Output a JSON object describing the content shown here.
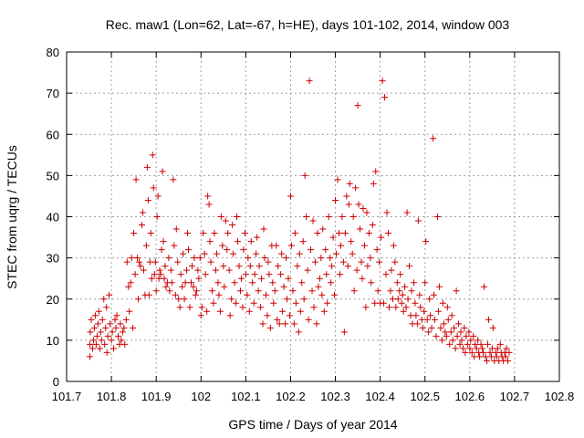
{
  "chart_data": {
    "type": "scatter",
    "title": "Rec. maw1 (Lon=62, Lat=-67, h=HE), days 101-102, 2014, window 003",
    "xlabel": "GPS time / Days of year 2014",
    "ylabel": "STEC from uqrg / TECUs",
    "xlim": [
      101.7,
      102.8
    ],
    "ylim": [
      0,
      80
    ],
    "xticks": [
      "101.7",
      "101.8",
      "101.9",
      "102",
      "102.1",
      "102.2",
      "102.3",
      "102.4",
      "102.5",
      "102.6",
      "102.7",
      "102.8"
    ],
    "yticks": [
      "0",
      "10",
      "20",
      "30",
      "40",
      "50",
      "60",
      "70",
      "80"
    ],
    "grid": true,
    "marker": "+",
    "color": "#cc0000",
    "points": [
      [
        101.752,
        6
      ],
      [
        101.752,
        9
      ],
      [
        101.753,
        12
      ],
      [
        101.755,
        15
      ],
      [
        101.758,
        8
      ],
      [
        101.76,
        10
      ],
      [
        101.762,
        13
      ],
      [
        101.764,
        16
      ],
      [
        101.766,
        9
      ],
      [
        101.768,
        11
      ],
      [
        101.77,
        14
      ],
      [
        101.772,
        17
      ],
      [
        101.774,
        8
      ],
      [
        101.776,
        12
      ],
      [
        101.778,
        10
      ],
      [
        101.78,
        15
      ],
      [
        101.783,
        20
      ],
      [
        101.785,
        9
      ],
      [
        101.787,
        13
      ],
      [
        101.789,
        18
      ],
      [
        101.79,
        7
      ],
      [
        101.792,
        11
      ],
      [
        101.795,
        21
      ],
      [
        101.797,
        14
      ],
      [
        101.8,
        10
      ],
      [
        101.802,
        12
      ],
      [
        101.805,
        8
      ],
      [
        101.808,
        15
      ],
      [
        101.81,
        13
      ],
      [
        101.812,
        16
      ],
      [
        101.815,
        11
      ],
      [
        101.818,
        9
      ],
      [
        101.82,
        14
      ],
      [
        101.822,
        10
      ],
      [
        101.825,
        12
      ],
      [
        101.828,
        13
      ],
      [
        101.83,
        9
      ],
      [
        101.833,
        15
      ],
      [
        101.835,
        29
      ],
      [
        101.838,
        23
      ],
      [
        101.84,
        17
      ],
      [
        101.843,
        24
      ],
      [
        101.845,
        30
      ],
      [
        101.848,
        13
      ],
      [
        101.85,
        36
      ],
      [
        101.853,
        26
      ],
      [
        101.855,
        49
      ],
      [
        101.858,
        30
      ],
      [
        101.86,
        20
      ],
      [
        101.862,
        29
      ],
      [
        101.865,
        28
      ],
      [
        101.868,
        38
      ],
      [
        101.87,
        41
      ],
      [
        101.872,
        27
      ],
      [
        101.875,
        21
      ],
      [
        101.878,
        33
      ],
      [
        101.88,
        52
      ],
      [
        101.882,
        44
      ],
      [
        101.884,
        21
      ],
      [
        101.886,
        29
      ],
      [
        101.888,
        36
      ],
      [
        101.89,
        25
      ],
      [
        101.892,
        55
      ],
      [
        101.894,
        47
      ],
      [
        101.896,
        26
      ],
      [
        101.898,
        29
      ],
      [
        101.9,
        22
      ],
      [
        101.902,
        40
      ],
      [
        101.904,
        45
      ],
      [
        101.906,
        25
      ],
      [
        101.908,
        27
      ],
      [
        101.91,
        26
      ],
      [
        101.912,
        32
      ],
      [
        101.914,
        51
      ],
      [
        101.916,
        34
      ],
      [
        101.918,
        25
      ],
      [
        101.92,
        28
      ],
      [
        101.922,
        23
      ],
      [
        101.925,
        24
      ],
      [
        101.928,
        30
      ],
      [
        101.93,
        22
      ],
      [
        101.933,
        27
      ],
      [
        101.935,
        24
      ],
      [
        101.938,
        49
      ],
      [
        101.94,
        33
      ],
      [
        101.943,
        21
      ],
      [
        101.945,
        37
      ],
      [
        101.948,
        29
      ],
      [
        101.95,
        20
      ],
      [
        101.953,
        18
      ],
      [
        101.955,
        26
      ],
      [
        101.958,
        23
      ],
      [
        101.96,
        31
      ],
      [
        101.963,
        20
      ],
      [
        101.965,
        24
      ],
      [
        101.968,
        27
      ],
      [
        101.97,
        36
      ],
      [
        101.972,
        32
      ],
      [
        101.975,
        18
      ],
      [
        101.978,
        24
      ],
      [
        101.98,
        28
      ],
      [
        101.983,
        23
      ],
      [
        101.985,
        30
      ],
      [
        101.988,
        21
      ],
      [
        101.99,
        22
      ],
      [
        101.993,
        27
      ],
      [
        101.995,
        25
      ],
      [
        101.998,
        30
      ],
      [
        102.0,
        16
      ],
      [
        102.002,
        18
      ],
      [
        102.005,
        36
      ],
      [
        102.008,
        31
      ],
      [
        102.01,
        26
      ],
      [
        102.013,
        17
      ],
      [
        102.015,
        45
      ],
      [
        102.018,
        43
      ],
      [
        102.02,
        34
      ],
      [
        102.022,
        29
      ],
      [
        102.025,
        22
      ],
      [
        102.028,
        19
      ],
      [
        102.03,
        36
      ],
      [
        102.033,
        27
      ],
      [
        102.035,
        31
      ],
      [
        102.038,
        24
      ],
      [
        102.04,
        21
      ],
      [
        102.043,
        17
      ],
      [
        102.045,
        40
      ],
      [
        102.048,
        33
      ],
      [
        102.05,
        28
      ],
      [
        102.052,
        23
      ],
      [
        102.055,
        39
      ],
      [
        102.058,
        32
      ],
      [
        102.06,
        36
      ],
      [
        102.063,
        27
      ],
      [
        102.065,
        16
      ],
      [
        102.068,
        20
      ],
      [
        102.07,
        38
      ],
      [
        102.072,
        31
      ],
      [
        102.075,
        24
      ],
      [
        102.078,
        19
      ],
      [
        102.08,
        40
      ],
      [
        102.082,
        34
      ],
      [
        102.085,
        28
      ],
      [
        102.088,
        22
      ],
      [
        102.09,
        25
      ],
      [
        102.093,
        18
      ],
      [
        102.095,
        32
      ],
      [
        102.098,
        36
      ],
      [
        102.1,
        26
      ],
      [
        102.103,
        21
      ],
      [
        102.105,
        30
      ],
      [
        102.108,
        17
      ],
      [
        102.11,
        28
      ],
      [
        102.112,
        34
      ],
      [
        102.115,
        24
      ],
      [
        102.118,
        19
      ],
      [
        102.12,
        26
      ],
      [
        102.123,
        31
      ],
      [
        102.125,
        35
      ],
      [
        102.128,
        22
      ],
      [
        102.13,
        28
      ],
      [
        102.133,
        18
      ],
      [
        102.135,
        25
      ],
      [
        102.138,
        14
      ],
      [
        102.14,
        37
      ],
      [
        102.142,
        30
      ],
      [
        102.145,
        21
      ],
      [
        102.148,
        16
      ],
      [
        102.15,
        29
      ],
      [
        102.152,
        26
      ],
      [
        102.155,
        13
      ],
      [
        102.158,
        33
      ],
      [
        102.16,
        24
      ],
      [
        102.162,
        19
      ],
      [
        102.165,
        22
      ],
      [
        102.168,
        33
      ],
      [
        102.17,
        15
      ],
      [
        102.172,
        28
      ],
      [
        102.175,
        14
      ],
      [
        102.178,
        26
      ],
      [
        102.18,
        31
      ],
      [
        102.182,
        17
      ],
      [
        102.185,
        23
      ],
      [
        102.188,
        14
      ],
      [
        102.19,
        30
      ],
      [
        102.192,
        20
      ],
      [
        102.195,
        25
      ],
      [
        102.198,
        16
      ],
      [
        102.2,
        45
      ],
      [
        102.202,
        33
      ],
      [
        102.205,
        22
      ],
      [
        102.208,
        14
      ],
      [
        102.21,
        36
      ],
      [
        102.212,
        19
      ],
      [
        102.215,
        28
      ],
      [
        102.218,
        12
      ],
      [
        102.22,
        31
      ],
      [
        102.222,
        17
      ],
      [
        102.225,
        24
      ],
      [
        102.228,
        34
      ],
      [
        102.23,
        20
      ],
      [
        102.232,
        50
      ],
      [
        102.235,
        40
      ],
      [
        102.238,
        27
      ],
      [
        102.24,
        15
      ],
      [
        102.242,
        73
      ],
      [
        102.245,
        32
      ],
      [
        102.248,
        22
      ],
      [
        102.25,
        39
      ],
      [
        102.252,
        18
      ],
      [
        102.255,
        29
      ],
      [
        102.258,
        14
      ],
      [
        102.26,
        36
      ],
      [
        102.262,
        23
      ],
      [
        102.265,
        25
      ],
      [
        102.268,
        30
      ],
      [
        102.27,
        21
      ],
      [
        102.272,
        37
      ],
      [
        102.275,
        17
      ],
      [
        102.278,
        32
      ],
      [
        102.28,
        26
      ],
      [
        102.282,
        19
      ],
      [
        102.285,
        40
      ],
      [
        102.288,
        30
      ],
      [
        102.29,
        24
      ],
      [
        102.292,
        28
      ],
      [
        102.295,
        35
      ],
      [
        102.298,
        21
      ],
      [
        102.3,
        44
      ],
      [
        102.302,
        31
      ],
      [
        102.305,
        49
      ],
      [
        102.308,
        36
      ],
      [
        102.31,
        26
      ],
      [
        102.312,
        33
      ],
      [
        102.315,
        40
      ],
      [
        102.318,
        29
      ],
      [
        102.32,
        12
      ],
      [
        102.322,
        36
      ],
      [
        102.325,
        45
      ],
      [
        102.328,
        28
      ],
      [
        102.33,
        43
      ],
      [
        102.332,
        48
      ],
      [
        102.335,
        34
      ],
      [
        102.338,
        31
      ],
      [
        102.34,
        40
      ],
      [
        102.342,
        22
      ],
      [
        102.345,
        47
      ],
      [
        102.348,
        27
      ],
      [
        102.35,
        67
      ],
      [
        102.352,
        43
      ],
      [
        102.355,
        37
      ],
      [
        102.358,
        29
      ],
      [
        102.36,
        25
      ],
      [
        102.362,
        42
      ],
      [
        102.365,
        33
      ],
      [
        102.368,
        18
      ],
      [
        102.37,
        41
      ],
      [
        102.372,
        28
      ],
      [
        102.375,
        36
      ],
      [
        102.378,
        30
      ],
      [
        102.38,
        24
      ],
      [
        102.383,
        38
      ],
      [
        102.385,
        48
      ],
      [
        102.388,
        19
      ],
      [
        102.39,
        51
      ],
      [
        102.393,
        32
      ],
      [
        102.395,
        22
      ],
      [
        102.398,
        29
      ],
      [
        102.4,
        19
      ],
      [
        102.402,
        35
      ],
      [
        102.405,
        73
      ],
      [
        102.408,
        19
      ],
      [
        102.41,
        69
      ],
      [
        102.413,
        26
      ],
      [
        102.415,
        41
      ],
      [
        102.418,
        36
      ],
      [
        102.42,
        18
      ],
      [
        102.423,
        22
      ],
      [
        102.425,
        27
      ],
      [
        102.428,
        20
      ],
      [
        102.43,
        33
      ],
      [
        102.433,
        29
      ],
      [
        102.435,
        18
      ],
      [
        102.438,
        24
      ],
      [
        102.44,
        20
      ],
      [
        102.443,
        22
      ],
      [
        102.445,
        26
      ],
      [
        102.448,
        19
      ],
      [
        102.45,
        21
      ],
      [
        102.452,
        17
      ],
      [
        102.455,
        23
      ],
      [
        102.458,
        18
      ],
      [
        102.46,
        41
      ],
      [
        102.462,
        20
      ],
      [
        102.465,
        28
      ],
      [
        102.468,
        16
      ],
      [
        102.47,
        22
      ],
      [
        102.472,
        14
      ],
      [
        102.475,
        24
      ],
      [
        102.478,
        19
      ],
      [
        102.48,
        16
      ],
      [
        102.483,
        14
      ],
      [
        102.485,
        39
      ],
      [
        102.488,
        21
      ],
      [
        102.49,
        18
      ],
      [
        102.493,
        15
      ],
      [
        102.495,
        13
      ],
      [
        102.498,
        17
      ],
      [
        102.5,
        24
      ],
      [
        102.502,
        34
      ],
      [
        102.505,
        15
      ],
      [
        102.508,
        12
      ],
      [
        102.51,
        20
      ],
      [
        102.512,
        16
      ],
      [
        102.515,
        13
      ],
      [
        102.518,
        59
      ],
      [
        102.52,
        21
      ],
      [
        102.522,
        15
      ],
      [
        102.525,
        11
      ],
      [
        102.528,
        40
      ],
      [
        102.53,
        17
      ],
      [
        102.532,
        23
      ],
      [
        102.535,
        13
      ],
      [
        102.538,
        10
      ],
      [
        102.54,
        19
      ],
      [
        102.542,
        14
      ],
      [
        102.545,
        12
      ],
      [
        102.548,
        11
      ],
      [
        102.55,
        18
      ],
      [
        102.552,
        15
      ],
      [
        102.555,
        9
      ],
      [
        102.558,
        12
      ],
      [
        102.56,
        16
      ],
      [
        102.562,
        10
      ],
      [
        102.565,
        13
      ],
      [
        102.568,
        8
      ],
      [
        102.57,
        22
      ],
      [
        102.572,
        11
      ],
      [
        102.575,
        14
      ],
      [
        102.578,
        9
      ],
      [
        102.58,
        12
      ],
      [
        102.582,
        10
      ],
      [
        102.585,
        8
      ],
      [
        102.588,
        13
      ],
      [
        102.59,
        7
      ],
      [
        102.592,
        11
      ],
      [
        102.595,
        9
      ],
      [
        102.598,
        12
      ],
      [
        102.6,
        8
      ],
      [
        102.602,
        10
      ],
      [
        102.605,
        7
      ],
      [
        102.608,
        11
      ],
      [
        102.61,
        6
      ],
      [
        102.612,
        9
      ],
      [
        102.615,
        8
      ],
      [
        102.618,
        10
      ],
      [
        102.62,
        7
      ],
      [
        102.622,
        6
      ],
      [
        102.625,
        9
      ],
      [
        102.628,
        8
      ],
      [
        102.63,
        7
      ],
      [
        102.632,
        23
      ],
      [
        102.635,
        6
      ],
      [
        102.638,
        5
      ],
      [
        102.64,
        9
      ],
      [
        102.642,
        15
      ],
      [
        102.645,
        7
      ],
      [
        102.648,
        6
      ],
      [
        102.65,
        8
      ],
      [
        102.652,
        13
      ],
      [
        102.655,
        5
      ],
      [
        102.658,
        7
      ],
      [
        102.66,
        6
      ],
      [
        102.662,
        8
      ],
      [
        102.665,
        5
      ],
      [
        102.668,
        9
      ],
      [
        102.67,
        7
      ],
      [
        102.672,
        6
      ],
      [
        102.675,
        5
      ],
      [
        102.678,
        7
      ],
      [
        102.68,
        6
      ],
      [
        102.682,
        8
      ],
      [
        102.685,
        5
      ],
      [
        102.688,
        7
      ]
    ]
  }
}
